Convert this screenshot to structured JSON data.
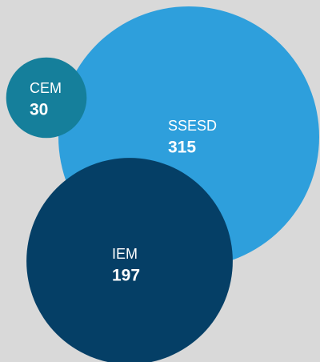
{
  "chart_data": {
    "type": "bubble",
    "categories": [
      "SSESD",
      "IEM",
      "CEM"
    ],
    "values": [
      315,
      197,
      30
    ],
    "colors": [
      "#2e9fdc",
      "#053f66",
      "#157f9b"
    ]
  }
}
